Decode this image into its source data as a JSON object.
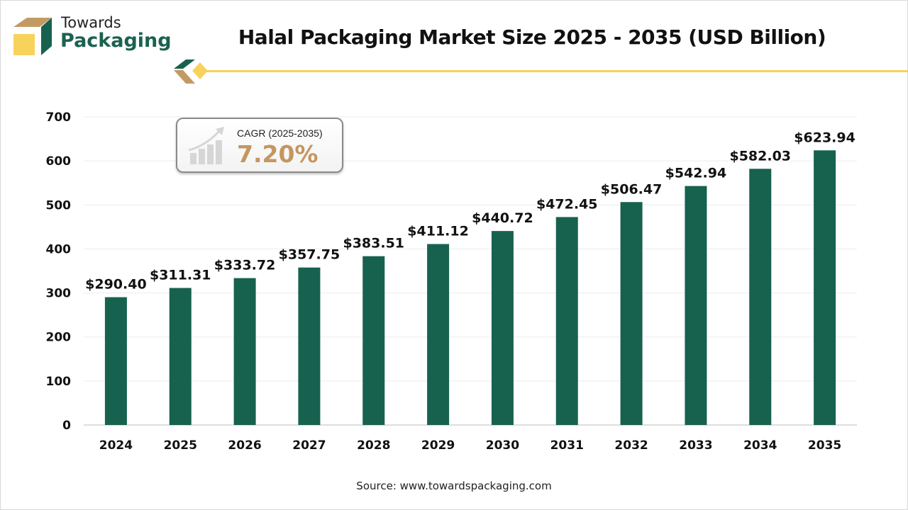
{
  "brand": {
    "line1": "Towards",
    "line2": "Packaging"
  },
  "source": "Source: www.towardspackaging.com",
  "cagr": {
    "label": "CAGR (2025-2035)",
    "value": "7.20%"
  },
  "colors": {
    "bar": "#17614f",
    "accent_yellow": "#f5d35a",
    "accent_tan": "#c49660"
  },
  "chart_data": {
    "type": "bar",
    "title": "Halal Packaging Market Size 2025 - 2035 (USD Billion)",
    "categories": [
      "2024",
      "2025",
      "2026",
      "2027",
      "2028",
      "2029",
      "2030",
      "2031",
      "2032",
      "2033",
      "2034",
      "2035"
    ],
    "values": [
      290.4,
      311.31,
      333.72,
      357.75,
      383.51,
      411.12,
      440.72,
      472.45,
      506.47,
      542.94,
      582.03,
      623.94
    ],
    "data_labels": [
      "$290.40",
      "$311.31",
      "$333.72",
      "$357.75",
      "$383.51",
      "$411.12",
      "$440.72",
      "$472.45",
      "$506.47",
      "$542.94",
      "$582.03",
      "$623.94"
    ],
    "ylim": [
      0,
      700
    ],
    "yticks": [
      0,
      100,
      200,
      300,
      400,
      500,
      600,
      700
    ],
    "grid": true,
    "xlabel": "",
    "ylabel": ""
  }
}
